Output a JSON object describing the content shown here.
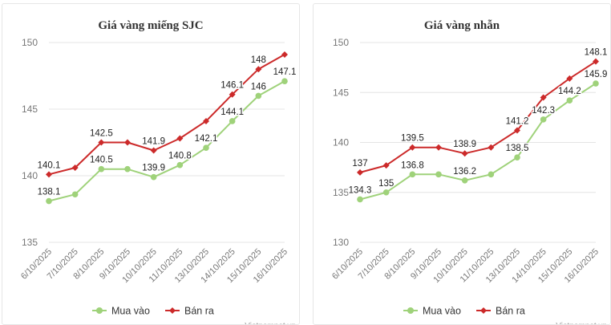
{
  "credit": "Vietnamnet.vn",
  "legend": {
    "buy": "Mua vào",
    "sell": "Bán ra"
  },
  "colors": {
    "buy": "#9fd27a",
    "sell": "#cc2a2a",
    "grid": "#e4e4e4",
    "text": "#777777"
  },
  "chart_data": [
    {
      "type": "line",
      "title": "Giá vàng miếng SJC",
      "xlabel": "",
      "ylabel": "",
      "ylim": [
        135,
        150
      ],
      "yticks": [
        135,
        140,
        145,
        150
      ],
      "categories": [
        "6/10/2025",
        "7/10/2025",
        "8/10/2025",
        "9/10/2025",
        "10/10/2025",
        "11/10/2025",
        "13/10/2025",
        "14/10/2025",
        "15/10/2025",
        "16/10/2025"
      ],
      "series": [
        {
          "name": "Mua vào",
          "key": "buy",
          "values": [
            138.1,
            138.6,
            140.5,
            140.5,
            139.9,
            140.8,
            142.1,
            144.1,
            146,
            147.1
          ],
          "labels": [
            "138.1",
            "",
            "140.5",
            "",
            "139.9",
            "140.8",
            "142.1",
            "144.1",
            "146",
            "147.1"
          ]
        },
        {
          "name": "Bán ra",
          "key": "sell",
          "values": [
            140.1,
            140.6,
            142.5,
            142.5,
            141.9,
            142.8,
            144.1,
            146.1,
            148,
            149.1
          ],
          "labels": [
            "140.1",
            "",
            "142.5",
            "",
            "141.9",
            "",
            "",
            "146.1",
            "148",
            ""
          ]
        }
      ]
    },
    {
      "type": "line",
      "title": "Giá vàng nhẫn",
      "xlabel": "",
      "ylabel": "",
      "ylim": [
        130,
        150
      ],
      "yticks": [
        130,
        135,
        140,
        145,
        150
      ],
      "categories": [
        "6/10/2025",
        "7/10/2025",
        "8/10/2025",
        "9/10/2025",
        "10/10/2025",
        "11/10/2025",
        "13/10/2025",
        "14/10/2025",
        "15/10/2025",
        "16/10/2025"
      ],
      "series": [
        {
          "name": "Mua vào",
          "key": "buy",
          "values": [
            134.3,
            135,
            136.8,
            136.8,
            136.2,
            136.8,
            138.5,
            142.3,
            144.2,
            145.9
          ],
          "labels": [
            "134.3",
            "135",
            "136.8",
            "",
            "136.2",
            "",
            "138.5",
            "142.3",
            "144.2",
            "145.9"
          ]
        },
        {
          "name": "Bán ra",
          "key": "sell",
          "values": [
            137,
            137.7,
            139.5,
            139.5,
            138.9,
            139.5,
            141.2,
            144.5,
            146.4,
            148.1
          ],
          "labels": [
            "137",
            "",
            "139.5",
            "",
            "138.9",
            "",
            "141.2",
            "",
            "",
            "148.1"
          ]
        }
      ]
    }
  ]
}
